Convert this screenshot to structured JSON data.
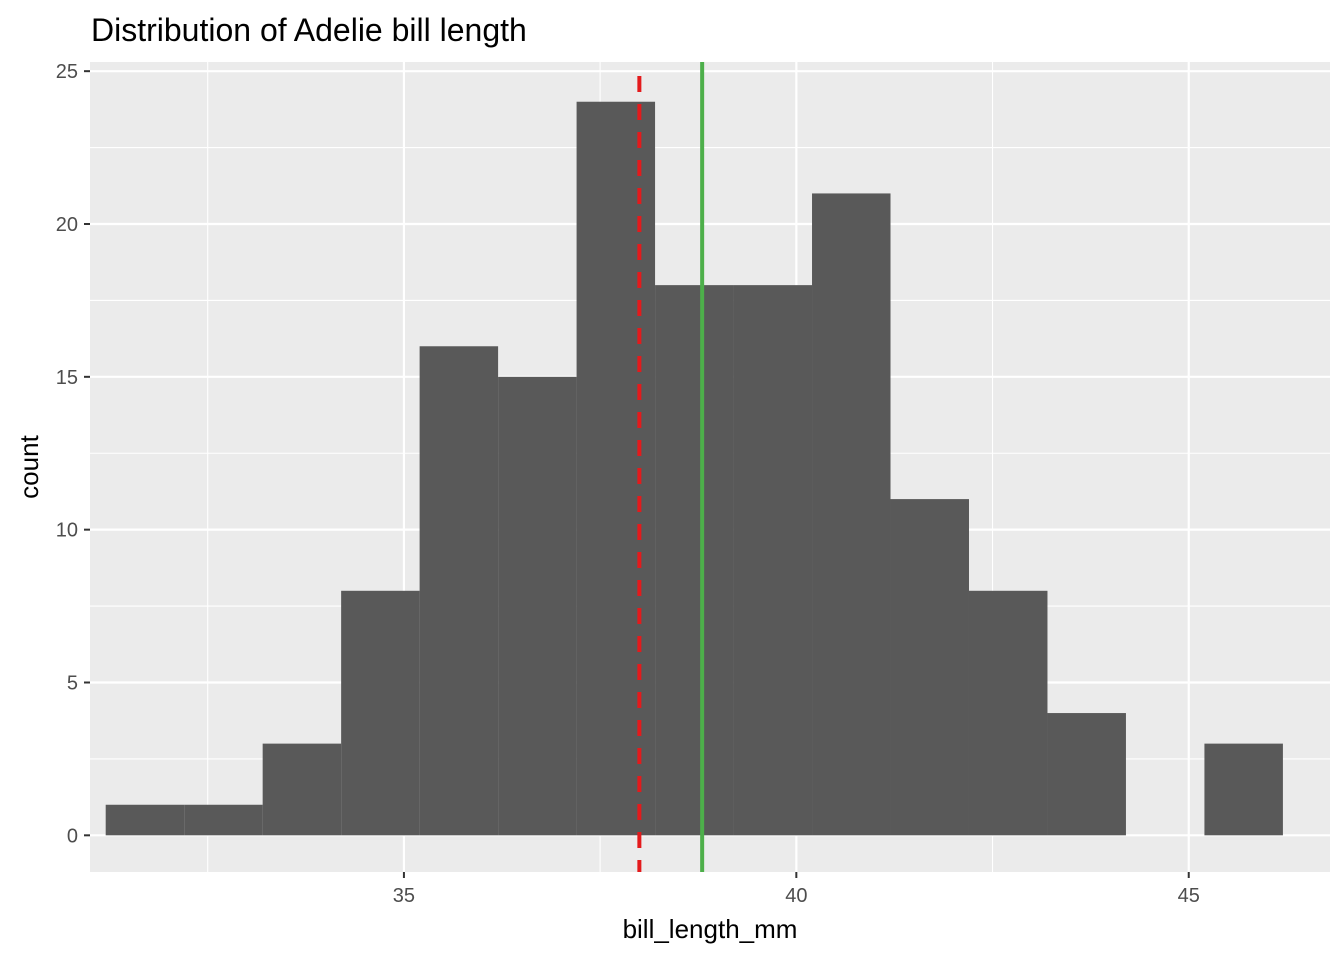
{
  "chart_data": {
    "type": "histogram",
    "title": "Distribution of Adelie bill length",
    "xlabel": "bill_length_mm",
    "ylabel": "count",
    "xlim": [
      31.0,
      46.8
    ],
    "ylim": [
      -1.2,
      25.3
    ],
    "x_ticks": [
      35,
      40,
      45
    ],
    "y_ticks": [
      0,
      5,
      10,
      15,
      20,
      25
    ],
    "x_minor_ticks": [
      32.5,
      37.5,
      42.5
    ],
    "y_minor_ticks": [
      2.5,
      7.5,
      12.5,
      17.5,
      22.5
    ],
    "bins": [
      {
        "x0": 31.2,
        "x1": 32.2,
        "count": 1
      },
      {
        "x0": 32.2,
        "x1": 33.2,
        "count": 1
      },
      {
        "x0": 33.2,
        "x1": 34.2,
        "count": 3
      },
      {
        "x0": 34.2,
        "x1": 35.2,
        "count": 8
      },
      {
        "x0": 35.2,
        "x1": 36.2,
        "count": 16
      },
      {
        "x0": 36.2,
        "x1": 37.2,
        "count": 15
      },
      {
        "x0": 37.2,
        "x1": 38.2,
        "count": 24
      },
      {
        "x0": 38.2,
        "x1": 39.2,
        "count": 18
      },
      {
        "x0": 39.2,
        "x1": 40.2,
        "count": 18
      },
      {
        "x0": 40.2,
        "x1": 41.2,
        "count": 21
      },
      {
        "x0": 41.2,
        "x1": 42.2,
        "count": 11
      },
      {
        "x0": 42.2,
        "x1": 43.2,
        "count": 8
      },
      {
        "x0": 43.2,
        "x1": 44.2,
        "count": 4
      },
      {
        "x0": 44.2,
        "x1": 45.2,
        "count": 0
      },
      {
        "x0": 45.2,
        "x1": 46.2,
        "count": 3
      }
    ],
    "vlines": [
      {
        "x": 38.0,
        "color": "#e41a1c",
        "style": "dashed"
      },
      {
        "x": 38.8,
        "color": "#4daf4a",
        "style": "solid"
      }
    ],
    "bar_color": "#595959",
    "panel_background": "#ebebeb",
    "grid": true,
    "legend": "none"
  }
}
